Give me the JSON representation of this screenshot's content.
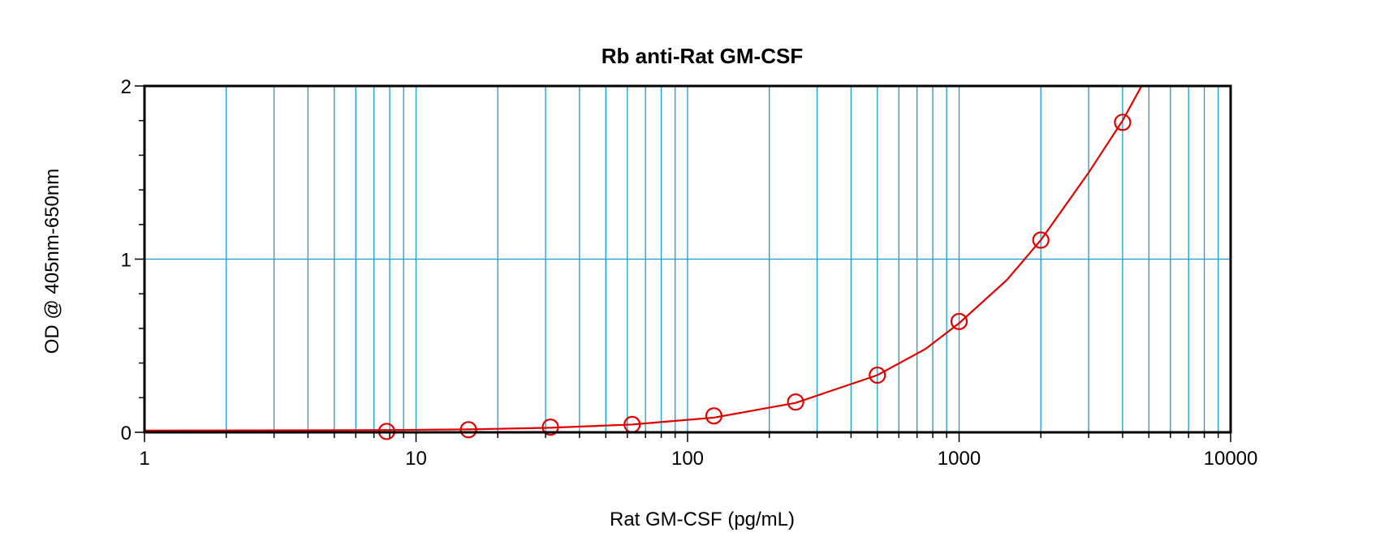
{
  "chart_data": {
    "type": "scatter",
    "title": "Rb anti-Rat GM-CSF",
    "xlabel": "Rat GM-CSF (pg/mL)",
    "ylabel": "OD @ 405nm-650nm",
    "x_scale": "log",
    "xlim": [
      1,
      10000
    ],
    "ylim": [
      0,
      2
    ],
    "x_ticks": [
      "1",
      "10",
      "100",
      "1000",
      "10000"
    ],
    "y_ticks": [
      "0",
      "1",
      "2"
    ],
    "grid": true,
    "colors": {
      "grid": "#1a9bd7",
      "series": "#e00000",
      "axis": "#000000"
    },
    "series": [
      {
        "points": [
          {
            "x": 7.8,
            "y": 0.005
          },
          {
            "x": 15.6,
            "y": 0.015
          },
          {
            "x": 31.25,
            "y": 0.03
          },
          {
            "x": 62.5,
            "y": 0.045
          },
          {
            "x": 125,
            "y": 0.095
          },
          {
            "x": 250,
            "y": 0.175
          },
          {
            "x": 500,
            "y": 0.33
          },
          {
            "x": 1000,
            "y": 0.64
          },
          {
            "x": 2000,
            "y": 1.11
          },
          {
            "x": 4000,
            "y": 1.79
          }
        ],
        "fit_curve": [
          {
            "x": 1,
            "y": 0.01
          },
          {
            "x": 7.8,
            "y": 0.013
          },
          {
            "x": 15.6,
            "y": 0.017
          },
          {
            "x": 31.25,
            "y": 0.026
          },
          {
            "x": 62.5,
            "y": 0.045
          },
          {
            "x": 125,
            "y": 0.085
          },
          {
            "x": 250,
            "y": 0.17
          },
          {
            "x": 500,
            "y": 0.33
          },
          {
            "x": 750,
            "y": 0.48
          },
          {
            "x": 1000,
            "y": 0.63
          },
          {
            "x": 1500,
            "y": 0.88
          },
          {
            "x": 2000,
            "y": 1.11
          },
          {
            "x": 3000,
            "y": 1.5
          },
          {
            "x": 4000,
            "y": 1.8
          },
          {
            "x": 4700,
            "y": 2.0
          }
        ]
      }
    ]
  }
}
